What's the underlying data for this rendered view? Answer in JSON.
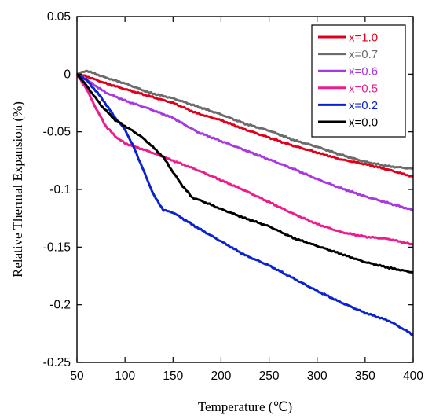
{
  "chart_data": {
    "type": "line",
    "xlabel": "Temperature (℃)",
    "ylabel": "Relative Thermal Expansion (%)",
    "xlim": [
      50,
      400
    ],
    "ylim": [
      -0.25,
      0.05
    ],
    "xticks": [
      50,
      100,
      150,
      200,
      250,
      300,
      350,
      400
    ],
    "yticks": [
      0.05,
      0,
      -0.05,
      -0.1,
      -0.15,
      -0.2,
      -0.25
    ],
    "xtick_labels": [
      "50",
      "100",
      "150",
      "200",
      "250",
      "300",
      "350",
      "400"
    ],
    "ytick_labels": [
      "0.05",
      "0",
      "-0.05",
      "-0.1",
      "-0.15",
      "-0.2",
      "-0.25"
    ],
    "grid": false,
    "legend_position": "top-right",
    "series": [
      {
        "name": "x=1.0",
        "color": "#e0001b",
        "x": [
          50,
          60,
          80,
          100,
          125,
          150,
          175,
          200,
          225,
          250,
          275,
          300,
          325,
          350,
          375,
          400
        ],
        "y": [
          0.0,
          -0.002,
          -0.008,
          -0.013,
          -0.019,
          -0.025,
          -0.034,
          -0.04,
          -0.048,
          -0.055,
          -0.062,
          -0.068,
          -0.074,
          -0.078,
          -0.083,
          -0.089
        ]
      },
      {
        "name": "x=0.7",
        "color": "#6b6b6b",
        "x": [
          50,
          60,
          80,
          100,
          125,
          150,
          175,
          200,
          225,
          250,
          275,
          300,
          325,
          350,
          375,
          400
        ],
        "y": [
          0.0,
          0.003,
          -0.003,
          -0.008,
          -0.016,
          -0.021,
          -0.028,
          -0.035,
          -0.043,
          -0.049,
          -0.057,
          -0.063,
          -0.07,
          -0.076,
          -0.08,
          -0.082
        ]
      },
      {
        "name": "x=0.6",
        "color": "#a838e0",
        "x": [
          50,
          60,
          80,
          100,
          125,
          150,
          175,
          200,
          225,
          250,
          275,
          300,
          325,
          350,
          375,
          400
        ],
        "y": [
          0.0,
          -0.005,
          -0.016,
          -0.023,
          -0.03,
          -0.038,
          -0.05,
          -0.058,
          -0.066,
          -0.074,
          -0.082,
          -0.091,
          -0.099,
          -0.106,
          -0.112,
          -0.118
        ]
      },
      {
        "name": "x=0.5",
        "color": "#ee1b8c",
        "x": [
          50,
          60,
          70,
          80,
          90,
          100,
          125,
          150,
          175,
          200,
          225,
          250,
          275,
          300,
          325,
          350,
          375,
          400
        ],
        "y": [
          0.0,
          -0.013,
          -0.03,
          -0.045,
          -0.054,
          -0.06,
          -0.067,
          -0.075,
          -0.083,
          -0.092,
          -0.101,
          -0.111,
          -0.121,
          -0.13,
          -0.137,
          -0.141,
          -0.143,
          -0.148
        ]
      },
      {
        "name": "x=0.2",
        "color": "#0a22d0",
        "x": [
          50,
          60,
          75,
          90,
          100,
          110,
          120,
          130,
          140,
          150,
          175,
          200,
          225,
          250,
          275,
          300,
          325,
          350,
          375,
          400
        ],
        "y": [
          0.0,
          -0.005,
          -0.02,
          -0.038,
          -0.048,
          -0.065,
          -0.085,
          -0.105,
          -0.118,
          -0.12,
          -0.133,
          -0.145,
          -0.157,
          -0.166,
          -0.177,
          -0.188,
          -0.198,
          -0.207,
          -0.214,
          -0.226
        ]
      },
      {
        "name": "x=0.0",
        "color": "#000000",
        "x": [
          50,
          60,
          75,
          90,
          100,
          115,
          125,
          140,
          150,
          160,
          170,
          180,
          200,
          225,
          250,
          275,
          300,
          325,
          350,
          375,
          400
        ],
        "y": [
          0.0,
          -0.01,
          -0.027,
          -0.04,
          -0.045,
          -0.053,
          -0.06,
          -0.072,
          -0.085,
          -0.097,
          -0.107,
          -0.11,
          -0.117,
          -0.125,
          -0.132,
          -0.142,
          -0.149,
          -0.156,
          -0.163,
          -0.168,
          -0.172
        ]
      }
    ]
  }
}
